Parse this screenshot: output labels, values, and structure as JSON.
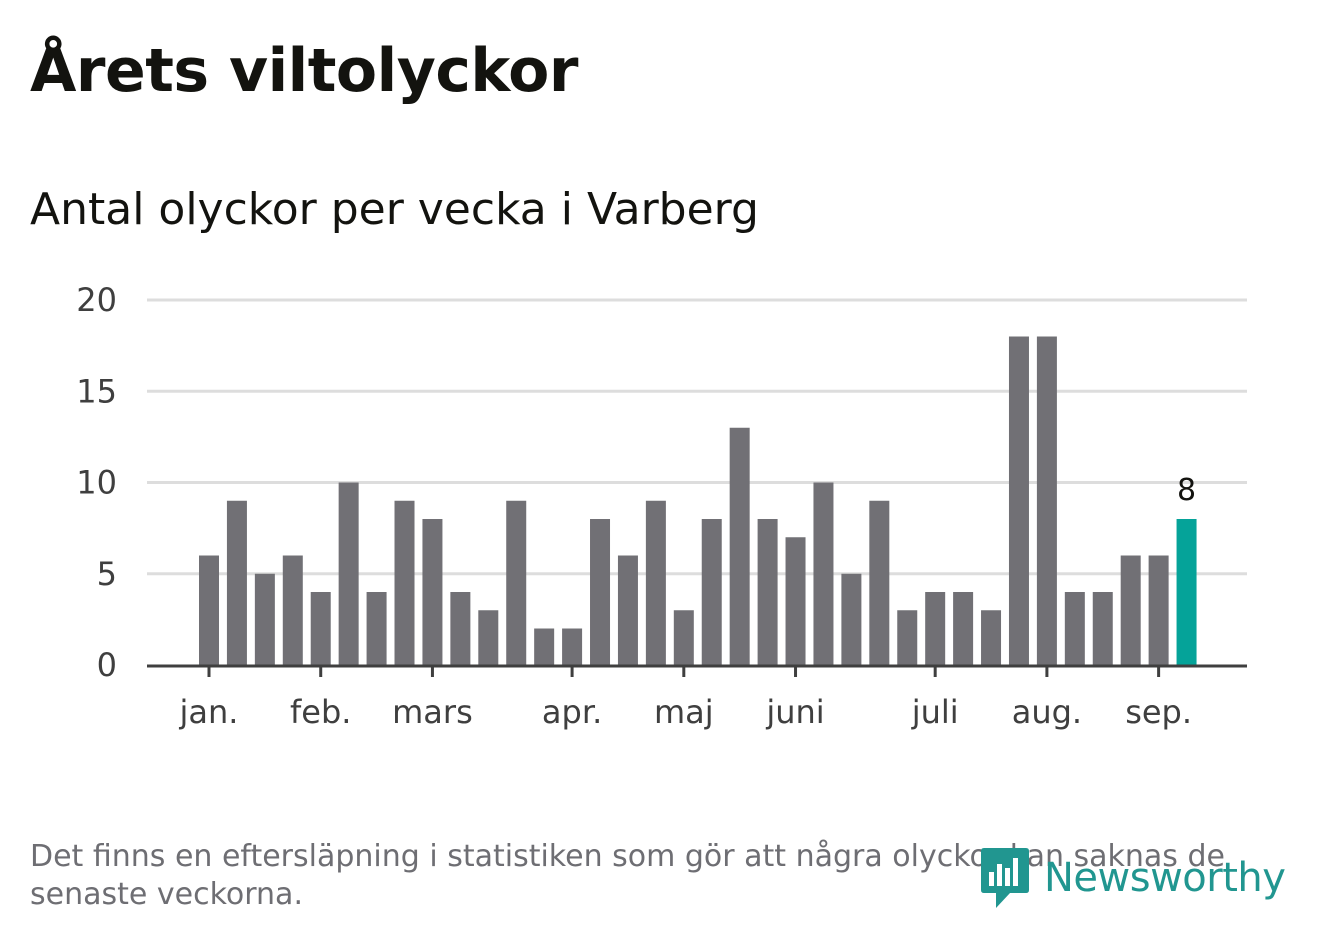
{
  "title": "Årets viltolyckor",
  "subtitle": "Antal olyckor per vecka i Varberg",
  "footnote": "Det finns en eftersläpning i statistiken som gör att några olyckor kan saknas de senaste veckorna.",
  "brand": {
    "name": "Newsworthy",
    "icon": "newsworthy-logo-icon"
  },
  "colors": {
    "bar": "#717075",
    "highlight": "#05a399",
    "grid": "#dddddd",
    "axis": "#3f3f3f",
    "text": "#3f3f3f",
    "brand": "#219690"
  },
  "chart_data": {
    "type": "bar",
    "values": [
      6,
      9,
      5,
      6,
      4,
      10,
      4,
      9,
      8,
      4,
      3,
      9,
      2,
      2,
      8,
      6,
      9,
      3,
      8,
      13,
      8,
      7,
      10,
      5,
      9,
      3,
      4,
      4,
      3,
      18,
      18,
      4,
      4,
      6,
      6,
      8
    ],
    "highlight_index": 35,
    "highlight_label": "8",
    "ylim": [
      0,
      20
    ],
    "yticks": [
      "0",
      "5",
      "10",
      "15",
      "20"
    ],
    "xticks": [
      {
        "label": "jan.",
        "week": 1
      },
      {
        "label": "feb.",
        "week": 5
      },
      {
        "label": "mars",
        "week": 9
      },
      {
        "label": "apr.",
        "week": 14
      },
      {
        "label": "maj",
        "week": 18
      },
      {
        "label": "juni",
        "week": 22
      },
      {
        "label": "juli",
        "week": 27
      },
      {
        "label": "aug.",
        "week": 31
      },
      {
        "label": "sep.",
        "week": 35
      }
    ],
    "grid": true
  }
}
